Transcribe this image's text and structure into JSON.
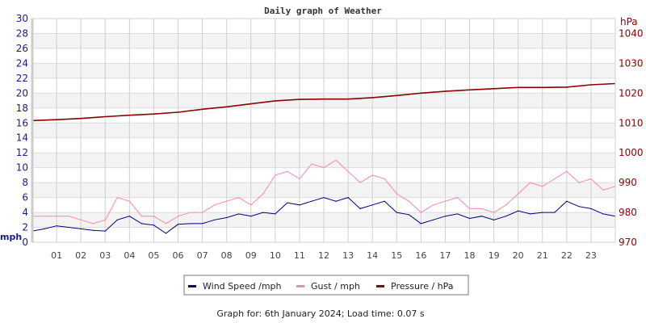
{
  "chart_data": {
    "type": "line",
    "title": "Daily graph of Weather",
    "y_left": {
      "label": "mph",
      "range": [
        0,
        30
      ],
      "ticks": [
        0,
        2,
        4,
        6,
        8,
        10,
        12,
        14,
        16,
        18,
        20,
        22,
        24,
        26,
        28,
        30
      ]
    },
    "y_right": {
      "label": "hPa",
      "range": [
        970,
        1045
      ],
      "ticks": [
        970,
        980,
        990,
        1000,
        1010,
        1020,
        1030,
        1040
      ]
    },
    "x": {
      "range": [
        0,
        24
      ],
      "tick_labels": [
        "01",
        "02",
        "03",
        "04",
        "05",
        "06",
        "07",
        "08",
        "09",
        "10",
        "11",
        "12",
        "13",
        "14",
        "15",
        "16",
        "17",
        "18",
        "19",
        "20",
        "21",
        "22",
        "23"
      ]
    },
    "grid": true,
    "legend_placement": "bottom",
    "series": [
      {
        "name": "Wind Speed /mph",
        "axis": "left",
        "color": "#000080",
        "x": [
          0,
          0.5,
          1,
          1.5,
          2,
          2.5,
          3,
          3.5,
          4,
          4.5,
          5,
          5.5,
          6,
          6.5,
          7,
          7.5,
          8,
          8.5,
          9,
          9.5,
          10,
          10.5,
          11,
          11.5,
          12,
          12.5,
          13,
          13.5,
          14,
          14.5,
          15,
          15.5,
          16,
          16.5,
          17,
          17.5,
          18,
          18.5,
          19,
          19.5,
          20,
          20.5,
          21,
          21.5,
          22,
          22.5,
          23,
          23.5,
          24
        ],
        "values": [
          1.5,
          1.8,
          2.2,
          2.0,
          1.8,
          1.6,
          1.5,
          3.0,
          3.5,
          2.5,
          2.3,
          1.2,
          2.4,
          2.5,
          2.5,
          3.0,
          3.3,
          3.8,
          3.5,
          4.0,
          3.8,
          5.3,
          5.0,
          5.5,
          6.0,
          5.5,
          6.0,
          4.5,
          5.0,
          5.5,
          4.0,
          3.7,
          2.5,
          3.0,
          3.5,
          3.8,
          3.2,
          3.5,
          3.0,
          3.5,
          4.2,
          3.8,
          4.0,
          4.0,
          5.5,
          4.8,
          4.5,
          3.8,
          3.5
        ]
      },
      {
        "name": "Gust / mph",
        "axis": "left",
        "color": "#ff88aa",
        "x": [
          0,
          0.5,
          1,
          1.5,
          2,
          2.5,
          3,
          3.5,
          4,
          4.5,
          5,
          5.5,
          6,
          6.5,
          7,
          7.5,
          8,
          8.5,
          9,
          9.5,
          10,
          10.5,
          11,
          11.5,
          12,
          12.5,
          13,
          13.5,
          14,
          14.5,
          15,
          15.5,
          16,
          16.5,
          17,
          17.5,
          18,
          18.5,
          19,
          19.5,
          20,
          20.5,
          21,
          21.5,
          22,
          22.5,
          23,
          23.5,
          24
        ],
        "values": [
          3.5,
          3.5,
          3.5,
          3.5,
          3.0,
          2.5,
          3.0,
          6.0,
          5.5,
          3.5,
          3.5,
          2.5,
          3.5,
          4.0,
          4.0,
          5.0,
          5.5,
          6.0,
          5.0,
          6.5,
          9.0,
          9.5,
          8.5,
          10.5,
          10.0,
          11.0,
          9.5,
          8.0,
          9.0,
          8.5,
          6.5,
          5.5,
          4.0,
          5.0,
          5.5,
          6.0,
          4.5,
          4.5,
          4.0,
          5.0,
          6.5,
          8.0,
          7.5,
          8.5,
          9.5,
          8.0,
          8.5,
          7.0,
          7.5
        ]
      },
      {
        "name": "Pressure / hPa",
        "axis": "right",
        "color": "#8b0000",
        "x": [
          0,
          1,
          2,
          3,
          4,
          5,
          6,
          7,
          8,
          9,
          10,
          11,
          12,
          13,
          14,
          15,
          16,
          17,
          18,
          19,
          20,
          21,
          22,
          23,
          24
        ],
        "values": [
          1010.8,
          1011.1,
          1011.5,
          1012.1,
          1012.6,
          1013.0,
          1013.6,
          1014.6,
          1015.4,
          1016.4,
          1017.4,
          1017.9,
          1018.0,
          1018.0,
          1018.5,
          1019.2,
          1020.0,
          1020.6,
          1021.1,
          1021.5,
          1021.9,
          1021.9,
          1022.0,
          1022.8,
          1023.2
        ]
      }
    ],
    "legend": [
      "Wind Speed /mph",
      "Gust / mph",
      "Pressure / hPa"
    ],
    "footer": "Graph for: 6th January 2024; Load time: 0.07 s"
  }
}
